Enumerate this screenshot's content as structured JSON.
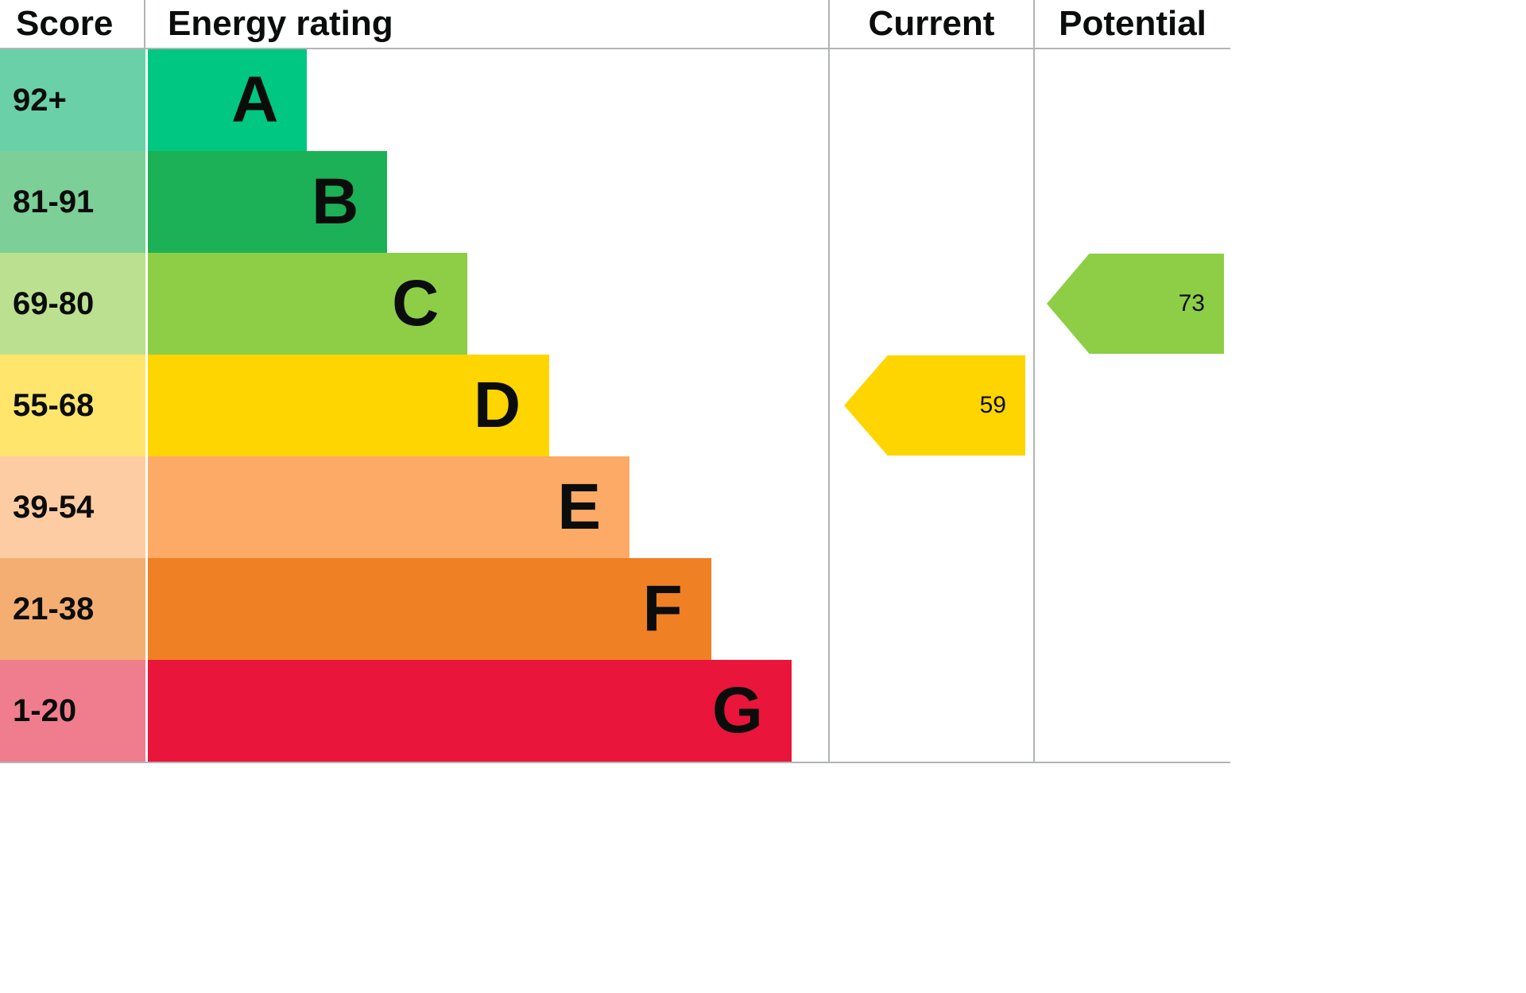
{
  "header": {
    "score": "Score",
    "rating": "Energy rating",
    "current": "Current",
    "potential": "Potential"
  },
  "chart_data": {
    "type": "bar",
    "subtype": "epc-energy-rating",
    "title": "Energy rating",
    "legend_position": "none",
    "grid": false,
    "bands": [
      {
        "score": "92+",
        "letter": "A",
        "color": "#00c781",
        "tint": "#6ad0a8",
        "width_pct": 23.4
      },
      {
        "score": "81-91",
        "letter": "B",
        "color": "#1cb156",
        "tint": "#7ccf96",
        "width_pct": 35.2
      },
      {
        "score": "69-80",
        "letter": "C",
        "color": "#8dce46",
        "tint": "#bbe190",
        "width_pct": 47.0
      },
      {
        "score": "55-68",
        "letter": "D",
        "color": "#ffd500",
        "tint": "#ffe56b",
        "width_pct": 59.0
      },
      {
        "score": "39-54",
        "letter": "E",
        "color": "#fcaa65",
        "tint": "#fdcca3",
        "width_pct": 70.8
      },
      {
        "score": "21-38",
        "letter": "F",
        "color": "#ef8023",
        "tint": "#f4ae72",
        "width_pct": 82.8
      },
      {
        "score": "1-20",
        "letter": "G",
        "color": "#e9153b",
        "tint": "#f07d8d",
        "width_pct": 94.6
      }
    ],
    "current": {
      "value": 59,
      "band": "D",
      "color": "#ffd500"
    },
    "potential": {
      "value": 73,
      "band": "C",
      "color": "#8dce46"
    }
  }
}
